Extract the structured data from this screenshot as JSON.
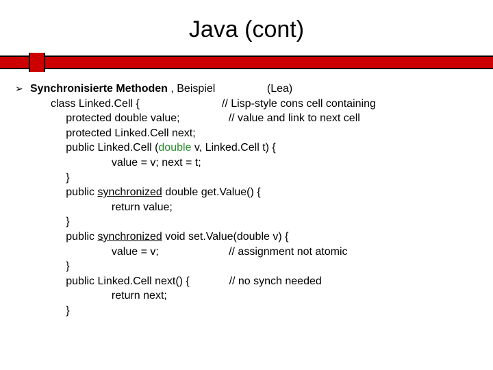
{
  "title": "Java (cont)",
  "bullet_glyph": "➢",
  "heading_bold": "Synchronisierte Methoden",
  "heading_rest": " , Beispiel",
  "heading_ref": "(Lea)",
  "code": {
    "l1a": "class Linked.Cell {",
    "l1b": "// Lisp-style cons cell containing",
    "l2a": "     protected double value;",
    "l2b": "// value and link to next cell",
    "l3": "     protected Linked.Cell next;",
    "l4a": "     public Linked.Cell (",
    "l4b": "double",
    "l4c": " v, Linked.Cell t) {",
    "l5": "                    value = v; next = t;",
    "l6": "     }",
    "l7a": "     public ",
    "l7b": "synchronized",
    "l7c": " double get.Value() {",
    "l8": "                    return value;",
    "l9": "     }",
    "l10a": "     public ",
    "l10b": "synchronized",
    "l10c": " void set.Value(double v) {",
    "l11a": "                    value = v;",
    "l11b": "// assignment not atomic",
    "l12": "     }",
    "l13a": "     public Linked.Cell next() {",
    "l13b": "// no synch needed",
    "l14": "                    return next;",
    "l15": "     }"
  },
  "colors": {
    "red_bar": "#cc0000",
    "green": "#2e8b2e",
    "text": "#000000",
    "background": "#ffffff"
  }
}
